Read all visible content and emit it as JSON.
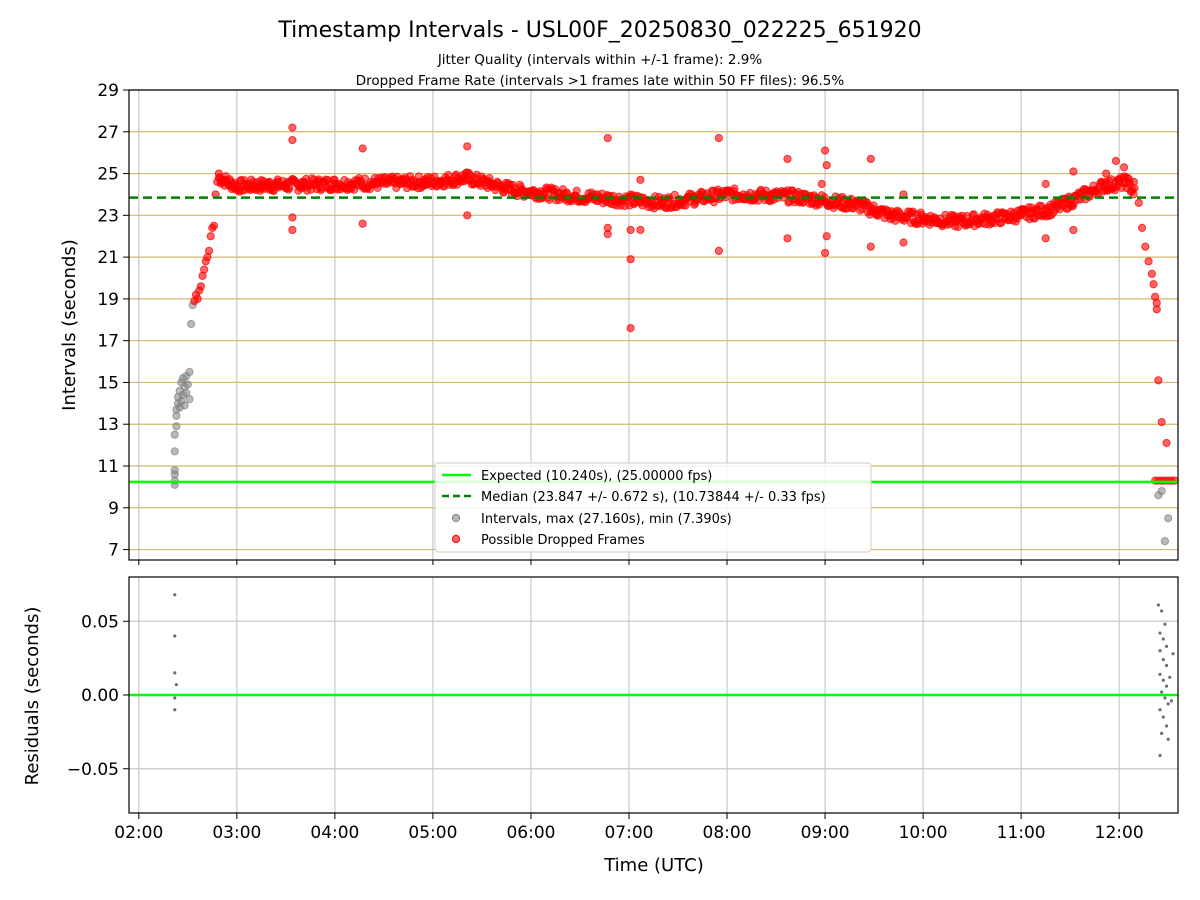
{
  "figure": {
    "title": "Timestamp Intervals - USL00F_20250830_022225_651920",
    "subtitle_1": "Jitter Quality (intervals within +/-1 frame): 2.9%",
    "subtitle_2": "Dropped Frame Rate (intervals >1 frames late within 50 FF files): 96.5%"
  },
  "colors": {
    "expected_line": "#00ff00",
    "median_line": "#008000",
    "intervals_points": "#808080",
    "dropped_points": "#ff0000",
    "hgrid_top": "#d2b96e",
    "grid": "#c8c8c8"
  },
  "chart_data": [
    {
      "type": "scatter",
      "panel": "intervals",
      "xlabel": "",
      "ylabel": "Intervals (seconds)",
      "xlim": [
        "01:54",
        "12:36"
      ],
      "ylim": [
        6.5,
        29
      ],
      "y_ticks": [
        "7",
        "9",
        "11",
        "13",
        "15",
        "17",
        "19",
        "21",
        "23",
        "25",
        "27",
        "29"
      ],
      "x_ticks": [
        "02:00",
        "03:00",
        "04:00",
        "05:00",
        "06:00",
        "07:00",
        "08:00",
        "09:00",
        "10:00",
        "11:00",
        "12:00"
      ],
      "grid": true,
      "legend_position": "bottom-center",
      "hlines": [
        {
          "name": "Expected (10.240s), (25.00000 fps)",
          "y": 10.24,
          "style": "solid"
        },
        {
          "name": "Median (23.847 +/- 0.672 s), (10.73844 +/- 0.33 fps)",
          "y": 23.847,
          "style": "dashed"
        }
      ],
      "series": [
        {
          "name": "Intervals, max (27.160s), min (7.390s)",
          "points": [
            [
              "02:22",
              10.1
            ],
            [
              "02:22",
              10.3
            ],
            [
              "02:22",
              10.6
            ],
            [
              "02:22",
              10.8
            ],
            [
              "02:22",
              11.7
            ],
            [
              "02:22",
              12.5
            ],
            [
              "02:23",
              12.9
            ],
            [
              "02:23",
              13.4
            ],
            [
              "02:23",
              13.7
            ],
            [
              "02:24",
              14.0
            ],
            [
              "02:24",
              14.3
            ],
            [
              "02:25",
              13.8
            ],
            [
              "02:25",
              14.6
            ],
            [
              "02:26",
              14.1
            ],
            [
              "02:26",
              15.0
            ],
            [
              "02:27",
              14.4
            ],
            [
              "02:27",
              15.2
            ],
            [
              "02:28",
              14.8
            ],
            [
              "02:28",
              13.9
            ],
            [
              "02:29",
              15.3
            ],
            [
              "02:29",
              14.5
            ],
            [
              "02:30",
              14.9
            ],
            [
              "02:31",
              15.5
            ],
            [
              "02:31",
              14.2
            ],
            [
              "02:32",
              17.8
            ],
            [
              "02:33",
              18.7
            ],
            [
              "12:24",
              9.6
            ],
            [
              "12:26",
              9.8
            ],
            [
              "12:28",
              7.4
            ],
            [
              "12:30",
              8.5
            ]
          ]
        },
        {
          "name": "Possible Dropped Frames",
          "points": [
            [
              "02:34",
              18.9
            ],
            [
              "02:35",
              19.2
            ],
            [
              "02:36",
              19.0
            ],
            [
              "02:37",
              19.4
            ],
            [
              "02:38",
              19.6
            ],
            [
              "02:39",
              20.1
            ],
            [
              "02:40",
              20.4
            ],
            [
              "02:41",
              20.8
            ],
            [
              "02:42",
              21.0
            ],
            [
              "02:43",
              21.3
            ],
            [
              "02:44",
              22.0
            ],
            [
              "02:45",
              22.4
            ],
            [
              "02:46",
              22.5
            ],
            [
              "02:47",
              24.0
            ],
            [
              "02:48",
              24.6
            ],
            [
              "02:49",
              25.0
            ],
            [
              "02:52",
              24.6
            ],
            [
              "02:56",
              24.4
            ],
            [
              "03:00",
              24.3
            ],
            [
              "03:05",
              24.5
            ],
            [
              "03:10",
              24.6
            ],
            [
              "03:15",
              24.5
            ],
            [
              "03:20",
              24.6
            ],
            [
              "03:25",
              24.6
            ],
            [
              "03:30",
              24.5
            ],
            [
              "03:34",
              27.2
            ],
            [
              "03:34",
              26.6
            ],
            [
              "03:34",
              22.9
            ],
            [
              "03:34",
              22.3
            ],
            [
              "03:40",
              24.6
            ],
            [
              "03:50",
              24.6
            ],
            [
              "04:00",
              24.5
            ],
            [
              "04:10",
              24.5
            ],
            [
              "04:17",
              26.2
            ],
            [
              "04:17",
              22.6
            ],
            [
              "04:25",
              24.6
            ],
            [
              "04:40",
              24.5
            ],
            [
              "04:55",
              24.6
            ],
            [
              "05:05",
              24.6
            ],
            [
              "05:20",
              24.7
            ],
            [
              "05:21",
              26.3
            ],
            [
              "05:21",
              23.0
            ],
            [
              "05:35",
              24.5
            ],
            [
              "05:50",
              24.3
            ],
            [
              "06:05",
              24.0
            ],
            [
              "06:20",
              23.9
            ],
            [
              "06:35",
              23.8
            ],
            [
              "06:47",
              26.7
            ],
            [
              "06:47",
              22.4
            ],
            [
              "06:47",
              22.1
            ],
            [
              "06:55",
              23.7
            ],
            [
              "07:01",
              22.3
            ],
            [
              "07:01",
              20.9
            ],
            [
              "07:01",
              17.6
            ],
            [
              "07:07",
              24.7
            ],
            [
              "07:07",
              22.3
            ],
            [
              "07:20",
              23.6
            ],
            [
              "07:40",
              23.8
            ],
            [
              "07:55",
              26.7
            ],
            [
              "07:55",
              21.3
            ],
            [
              "08:10",
              24.0
            ],
            [
              "08:25",
              23.9
            ],
            [
              "08:37",
              25.7
            ],
            [
              "08:37",
              21.9
            ],
            [
              "08:50",
              23.8
            ],
            [
              "08:58",
              24.5
            ],
            [
              "09:00",
              26.1
            ],
            [
              "09:01",
              25.4
            ],
            [
              "09:01",
              22.0
            ],
            [
              "09:00",
              21.2
            ],
            [
              "09:15",
              23.6
            ],
            [
              "09:28",
              25.7
            ],
            [
              "09:28",
              21.5
            ],
            [
              "09:40",
              23.0
            ],
            [
              "09:48",
              24.0
            ],
            [
              "09:48",
              21.7
            ],
            [
              "10:00",
              22.8
            ],
            [
              "10:20",
              22.7
            ],
            [
              "10:40",
              22.9
            ],
            [
              "11:00",
              23.0
            ],
            [
              "11:15",
              23.3
            ],
            [
              "11:15",
              24.5
            ],
            [
              "11:15",
              21.9
            ],
            [
              "11:30",
              23.7
            ],
            [
              "11:32",
              25.1
            ],
            [
              "11:32",
              22.3
            ],
            [
              "11:45",
              24.2
            ],
            [
              "11:52",
              24.6
            ],
            [
              "11:52",
              25.0
            ],
            [
              "11:58",
              25.6
            ],
            [
              "12:00",
              24.6
            ],
            [
              "12:03",
              25.3
            ],
            [
              "12:06",
              24.5
            ],
            [
              "12:09",
              24.6
            ],
            [
              "12:12",
              23.6
            ],
            [
              "12:14",
              22.4
            ],
            [
              "12:16",
              21.5
            ],
            [
              "12:18",
              20.8
            ],
            [
              "12:20",
              20.2
            ],
            [
              "12:21",
              19.7
            ],
            [
              "12:22",
              19.1
            ],
            [
              "12:23",
              18.8
            ],
            [
              "12:23",
              18.5
            ],
            [
              "12:24",
              15.1
            ],
            [
              "12:26",
              13.1
            ],
            [
              "12:29",
              12.1
            ],
            [
              "12:22",
              10.3
            ],
            [
              "12:24",
              10.3
            ],
            [
              "12:26",
              10.3
            ],
            [
              "12:28",
              10.3
            ],
            [
              "12:30",
              10.3
            ],
            [
              "12:32",
              10.3
            ],
            [
              "12:34",
              10.3
            ]
          ]
        }
      ]
    },
    {
      "type": "scatter",
      "panel": "residuals",
      "xlabel": "Time (UTC)",
      "ylabel": "Residuals (seconds)",
      "xlim": [
        "01:54",
        "12:36"
      ],
      "ylim": [
        -0.08,
        0.08
      ],
      "y_ticks": [
        "−0.05",
        "0.00",
        "0.05"
      ],
      "y_tick_values": [
        -0.05,
        0.0,
        0.05
      ],
      "x_ticks": [
        "02:00",
        "03:00",
        "04:00",
        "05:00",
        "06:00",
        "07:00",
        "08:00",
        "09:00",
        "10:00",
        "11:00",
        "12:00"
      ],
      "grid": true,
      "hlines": [
        {
          "y": 0.0,
          "style": "solid"
        }
      ],
      "series": [
        {
          "points": [
            [
              "02:22",
              0.068
            ],
            [
              "02:22",
              0.04
            ],
            [
              "02:22",
              0.015
            ],
            [
              "02:23",
              0.007
            ],
            [
              "02:22",
              -0.002
            ],
            [
              "02:22",
              -0.01
            ],
            [
              "12:24",
              0.061
            ],
            [
              "12:26",
              0.057
            ],
            [
              "12:28",
              0.048
            ],
            [
              "12:25",
              0.042
            ],
            [
              "12:27",
              0.038
            ],
            [
              "12:29",
              0.033
            ],
            [
              "12:25",
              0.03
            ],
            [
              "12:27",
              0.024
            ],
            [
              "12:29",
              0.02
            ],
            [
              "12:25",
              0.014
            ],
            [
              "12:27",
              0.01
            ],
            [
              "12:29",
              0.006
            ],
            [
              "12:26",
              0.002
            ],
            [
              "12:28",
              -0.002
            ],
            [
              "12:30",
              -0.006
            ],
            [
              "12:25",
              -0.01
            ],
            [
              "12:27",
              -0.015
            ],
            [
              "12:29",
              -0.021
            ],
            [
              "12:26",
              -0.026
            ],
            [
              "12:30",
              -0.03
            ],
            [
              "12:25",
              -0.041
            ],
            [
              "12:31",
              0.012
            ],
            [
              "12:32",
              -0.004
            ],
            [
              "12:33",
              0.028
            ]
          ]
        }
      ]
    }
  ]
}
